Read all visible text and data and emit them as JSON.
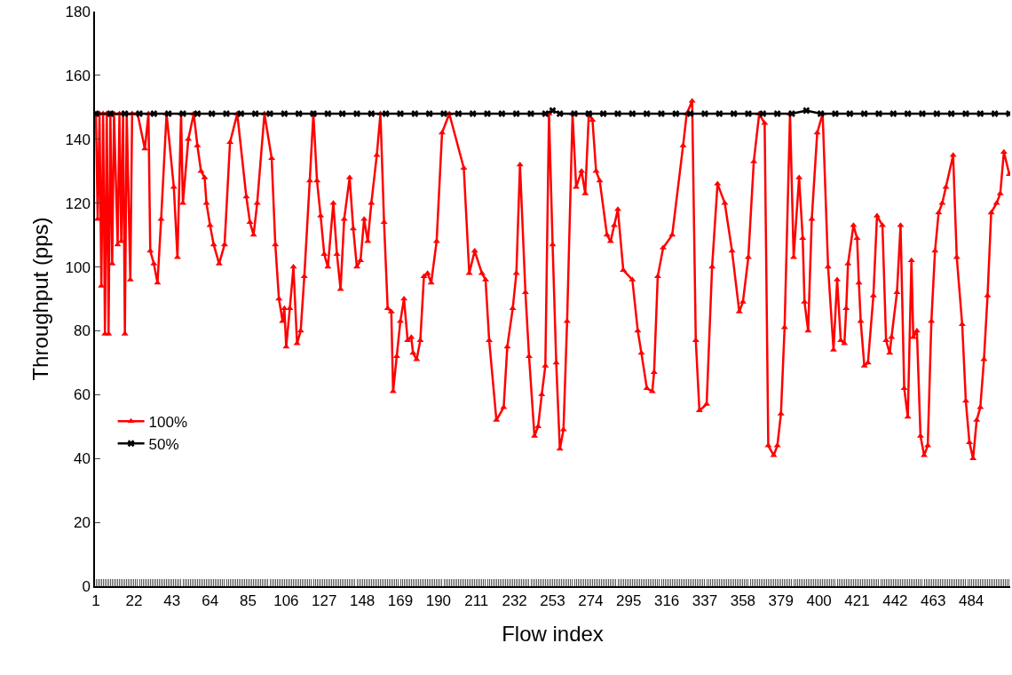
{
  "chart_data": {
    "type": "line",
    "xlabel": "Flow index",
    "ylabel": "Throughput (pps)",
    "xlim": [
      0.5,
      505.5
    ],
    "xticks": [
      1,
      22,
      43,
      64,
      85,
      106,
      127,
      148,
      169,
      190,
      211,
      232,
      253,
      274,
      295,
      316,
      337,
      358,
      379,
      400,
      421,
      442,
      463,
      484
    ],
    "ylim": [
      0,
      180
    ],
    "yticks": [
      0,
      20,
      40,
      60,
      80,
      100,
      120,
      140,
      160,
      180
    ],
    "legend": "bottom left",
    "line_style": "solid",
    "series": [
      {
        "name": "100%",
        "color": "#ff0000",
        "marker": "triangle",
        "x": [
          1,
          2,
          3,
          4,
          5,
          6,
          7,
          8,
          9,
          10,
          11,
          13,
          14,
          15,
          16,
          17,
          18,
          20,
          21,
          24,
          28,
          30,
          31,
          33,
          35,
          37,
          40,
          44,
          46,
          48,
          49,
          52,
          55,
          57,
          59,
          61,
          62,
          64,
          66,
          69,
          72,
          75,
          79,
          84,
          86,
          88,
          90,
          94,
          98,
          100,
          102,
          104,
          105,
          106,
          108,
          110,
          112,
          114,
          116,
          119,
          121,
          123,
          125,
          127,
          129,
          132,
          134,
          136,
          138,
          141,
          143,
          145,
          147,
          149,
          151,
          153,
          156,
          158,
          160,
          162,
          164,
          165,
          167,
          169,
          171,
          173,
          175,
          176,
          178,
          180,
          182,
          184,
          186,
          189,
          192,
          196,
          204,
          207,
          210,
          214,
          216,
          218,
          222,
          226,
          228,
          231,
          233,
          235,
          238,
          240,
          243,
          245,
          247,
          249,
          251,
          253,
          255,
          257,
          259,
          261,
          264,
          266,
          269,
          271,
          273,
          275,
          277,
          279,
          283,
          285,
          287,
          289,
          292,
          297,
          300,
          302,
          305,
          308,
          309,
          311,
          314,
          319,
          325,
          327,
          330,
          332,
          334,
          338,
          341,
          344,
          348,
          352,
          356,
          358,
          361,
          364,
          367,
          370,
          372,
          375,
          377,
          379,
          381,
          384,
          386,
          389,
          391,
          392,
          394,
          396,
          399,
          402,
          405,
          408,
          410,
          412,
          414,
          415,
          416,
          419,
          421,
          422,
          423,
          425,
          427,
          430,
          432,
          435,
          437,
          439,
          440,
          443,
          445,
          447,
          449,
          451,
          452,
          454,
          456,
          458,
          460,
          462,
          464,
          466,
          468,
          470,
          474,
          476,
          479,
          481,
          483,
          485,
          487,
          489,
          491,
          493,
          495,
          498,
          500,
          502,
          505
        ],
        "values": [
          148,
          115,
          148,
          94,
          148,
          79,
          148,
          79,
          148,
          101,
          148,
          107,
          148,
          108,
          148,
          79,
          148,
          96,
          148,
          148,
          137,
          148,
          105,
          101,
          95,
          115,
          148,
          125,
          103,
          148,
          120,
          140,
          148,
          138,
          130,
          128,
          120,
          113,
          107,
          101,
          107,
          139,
          148,
          122,
          114,
          110,
          120,
          148,
          134,
          107,
          90,
          83,
          87,
          75,
          87,
          100,
          76,
          80,
          97,
          127,
          148,
          127,
          116,
          104,
          100,
          120,
          104,
          93,
          115,
          128,
          112,
          100,
          102,
          115,
          108,
          120,
          135,
          148,
          114,
          87,
          86,
          61,
          72,
          83,
          90,
          77,
          78,
          73,
          71,
          77,
          97,
          98,
          95,
          108,
          142,
          148,
          131,
          98,
          105,
          98,
          96,
          77,
          52,
          56,
          75,
          87,
          98,
          132,
          92,
          72,
          47,
          50,
          60,
          69,
          148,
          107,
          70,
          43,
          49,
          83,
          148,
          125,
          130,
          123,
          148,
          146,
          130,
          127,
          110,
          108,
          113,
          118,
          99,
          96,
          80,
          73,
          62,
          61,
          67,
          97,
          106,
          110,
          138,
          148,
          152,
          77,
          55,
          57,
          100,
          126,
          120,
          105,
          86,
          89,
          103,
          133,
          148,
          145,
          44,
          41,
          44,
          54,
          81,
          148,
          103,
          128,
          109,
          89,
          80,
          115,
          142,
          148,
          100,
          74,
          96,
          77,
          76,
          87,
          101,
          113,
          109,
          95,
          83,
          69,
          70,
          91,
          116,
          113,
          77,
          73,
          78,
          92,
          113,
          62,
          53,
          102,
          78,
          80,
          47,
          41,
          44,
          83,
          105,
          117,
          120,
          125,
          135,
          103,
          82,
          58,
          45,
          40,
          52,
          56,
          71,
          91,
          117,
          120,
          123,
          136,
          129
        ]
      },
      {
        "name": "50%",
        "color": "#000000",
        "marker": "cross",
        "x": [
          1,
          9,
          17,
          25,
          33,
          41,
          49,
          57,
          65,
          73,
          81,
          89,
          97,
          105,
          113,
          121,
          129,
          137,
          145,
          153,
          161,
          169,
          177,
          185,
          193,
          201,
          209,
          217,
          225,
          233,
          241,
          249,
          253,
          257,
          265,
          273,
          281,
          289,
          297,
          305,
          313,
          321,
          329,
          337,
          345,
          353,
          361,
          369,
          377,
          385,
          393,
          401,
          409,
          417,
          425,
          433,
          441,
          449,
          457,
          465,
          473,
          481,
          489,
          497,
          505
        ],
        "values": [
          148,
          148,
          148,
          148,
          148,
          148,
          148,
          148,
          148,
          148,
          148,
          148,
          148,
          148,
          148,
          148,
          148,
          148,
          148,
          148,
          148,
          148,
          148,
          148,
          148,
          148,
          148,
          148,
          148,
          148,
          148,
          148,
          149,
          148,
          148,
          148,
          148,
          148,
          148,
          148,
          148,
          148,
          148,
          148,
          148,
          148,
          148,
          148,
          148,
          148,
          149,
          148,
          148,
          148,
          148,
          148,
          148,
          148,
          148,
          148,
          148,
          148,
          148,
          148,
          148
        ]
      }
    ]
  }
}
